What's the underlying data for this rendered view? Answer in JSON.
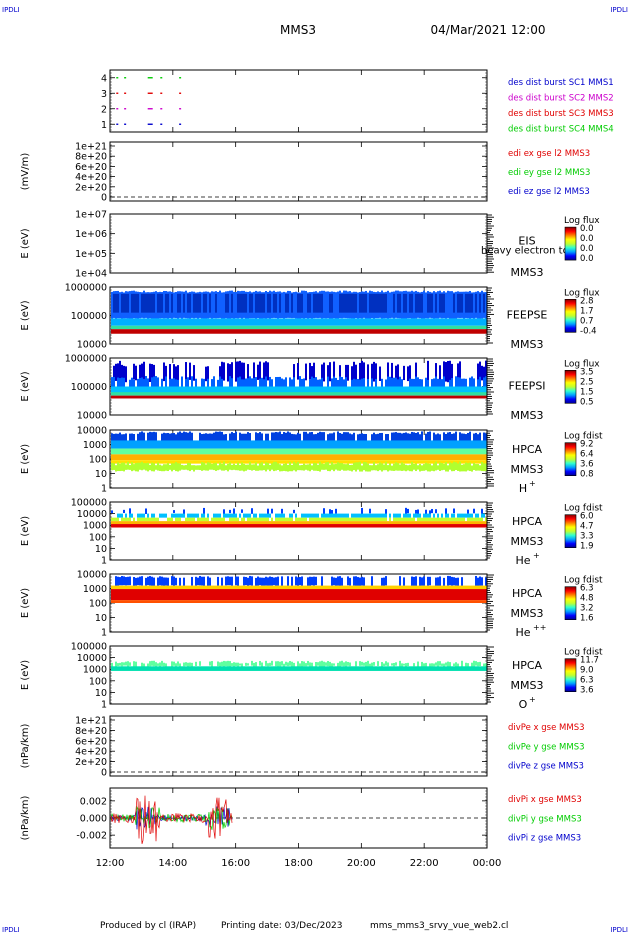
{
  "header": {
    "corner_label": "IPDLI",
    "mission": "MMS3",
    "datetime": "04/Mar/2021 12:00"
  },
  "footer": {
    "produced_by": "Produced by cl (IRAP)",
    "printing_date": "Printing date: 03/Dec/2023",
    "script": "mms_mms3_srvy_vue_web2.cl"
  },
  "x_axis": {
    "range": [
      "12:00",
      "00:00"
    ],
    "ticks": [
      "12:00",
      "14:00",
      "16:00",
      "18:00",
      "20:00",
      "22:00",
      "00:00"
    ]
  },
  "colors": {
    "red": "#e00000",
    "green": "#00cc00",
    "blue": "#0000cc",
    "magenta": "#cc00cc"
  },
  "chart_data": [
    {
      "type": "scatter",
      "name": "burst",
      "ylim": [
        0.5,
        4.5
      ],
      "yticks": [
        "4",
        "3",
        "2",
        "1"
      ],
      "legend": [
        {
          "label": "des dist burst SC1 MMS1",
          "color": "#0000cc"
        },
        {
          "label": "des dist burst SC2 MMS2",
          "color": "#cc00cc"
        },
        {
          "label": "des dist burst SC3 MMS3",
          "color": "#e00000"
        },
        {
          "label": "des dist burst SC4 MMS4",
          "color": "#00cc00"
        }
      ],
      "series": [
        {
          "y": 4,
          "color": "#00cc00",
          "x_hours": [
            0.2,
            0.45,
            1.2,
            1.6,
            2.2
          ]
        },
        {
          "y": 3,
          "color": "#e00000",
          "x_hours": [
            0.2,
            0.45,
            1.2,
            1.6,
            2.2
          ]
        },
        {
          "y": 2,
          "color": "#cc00cc",
          "x_hours": [
            0.2,
            0.45,
            1.2,
            1.6,
            2.2
          ]
        },
        {
          "y": 1,
          "color": "#0000cc",
          "x_hours": [
            0.2,
            0.45,
            1.2,
            1.6,
            2.2
          ]
        }
      ]
    },
    {
      "type": "line",
      "name": "edi",
      "ylabel": "(mV/m)",
      "yticks": [
        "1e+21",
        "8e+20",
        "6e+20",
        "4e+20",
        "2e+20",
        "0"
      ],
      "legend": [
        {
          "label": "edi ex gse l2 MMS3",
          "color": "#e00000"
        },
        {
          "label": "edi ey gse l2 MMS3",
          "color": "#00cc00"
        },
        {
          "label": "edi ez gse l2 MMS3",
          "color": "#0000cc"
        }
      ]
    },
    {
      "type": "heatmap",
      "name": "eis",
      "ylabel": "E (eV)",
      "yticks": [
        "1e+07",
        "1e+06",
        "1e+05",
        "1e+04"
      ],
      "instrument": "EIS",
      "overlay_text": "heavy electron to",
      "spacecraft": "MMS3",
      "cbar_title": "Log flux",
      "cbar_ticks": [
        "0.0",
        "0.0",
        "0.0",
        "0.0"
      ]
    },
    {
      "type": "heatmap",
      "name": "feepse",
      "ylabel": "E (eV)",
      "yticks": [
        "1000000",
        "100000",
        "10000"
      ],
      "instrument": "FEEPSE",
      "spacecraft": "MMS3",
      "cbar_title": "Log flux",
      "cbar_ticks": [
        "2.8",
        "1.7",
        "0.7",
        "-0.4"
      ]
    },
    {
      "type": "heatmap",
      "name": "feepsi",
      "ylabel": "E (eV)",
      "yticks": [
        "1000000",
        "100000",
        "10000"
      ],
      "instrument": "FEEPSI",
      "spacecraft": "MMS3",
      "cbar_title": "Log flux",
      "cbar_ticks": [
        "3.5",
        "2.5",
        "1.5",
        "0.5"
      ]
    },
    {
      "type": "heatmap",
      "name": "hpca-h",
      "ylabel": "E (eV)",
      "yticks": [
        "10000",
        "1000",
        "100",
        "10",
        "1"
      ],
      "instrument": "HPCA",
      "spacecraft": "MMS3",
      "species": "H",
      "charge": "+",
      "cbar_title": "Log fdist",
      "cbar_ticks": [
        "9.2",
        "6.4",
        "3.6",
        "0.8"
      ]
    },
    {
      "type": "heatmap",
      "name": "hpca-he1",
      "ylabel": "E (eV)",
      "yticks": [
        "100000",
        "10000",
        "1000",
        "100",
        "10",
        "1"
      ],
      "instrument": "HPCA",
      "spacecraft": "MMS3",
      "species": "He",
      "charge": "+",
      "cbar_title": "Log fdist",
      "cbar_ticks": [
        "6.0",
        "4.7",
        "3.3",
        "1.9"
      ]
    },
    {
      "type": "heatmap",
      "name": "hpca-he2",
      "ylabel": "E (eV)",
      "yticks": [
        "10000",
        "1000",
        "100",
        "10",
        "1"
      ],
      "instrument": "HPCA",
      "spacecraft": "MMS3",
      "species": "He",
      "charge": "++",
      "cbar_title": "Log fdist",
      "cbar_ticks": [
        "6.3",
        "4.8",
        "3.2",
        "1.6"
      ]
    },
    {
      "type": "heatmap",
      "name": "hpca-o",
      "ylabel": "E (eV)",
      "yticks": [
        "100000",
        "10000",
        "1000",
        "100",
        "10",
        "1"
      ],
      "instrument": "HPCA",
      "spacecraft": "MMS3",
      "species": "O",
      "charge": "+",
      "cbar_title": "Log fdist",
      "cbar_ticks": [
        "11.7",
        "9.0",
        "6.3",
        "3.6"
      ]
    },
    {
      "type": "line",
      "name": "divpe",
      "ylabel": "(nPa/km)",
      "yticks": [
        "1e+21",
        "8e+20",
        "6e+20",
        "4e+20",
        "2e+20",
        "0"
      ],
      "legend": [
        {
          "label": "divPe x gse MMS3",
          "color": "#e00000"
        },
        {
          "label": "divPe y gse MMS3",
          "color": "#00cc00"
        },
        {
          "label": "divPe z gse MMS3",
          "color": "#0000cc"
        }
      ]
    },
    {
      "type": "line",
      "name": "divpi",
      "ylabel": "(nPa/km)",
      "ylim": [
        -0.0035,
        0.0035
      ],
      "yticks": [
        "0.002",
        "0.000",
        "-0.002"
      ],
      "data_x_range_hours": [
        0,
        3.9
      ],
      "legend": [
        {
          "label": "divPi x gse MMS3",
          "color": "#e00000"
        },
        {
          "label": "divPi y gse MMS3",
          "color": "#00cc00"
        },
        {
          "label": "divPi z gse MMS3",
          "color": "#0000cc"
        }
      ]
    }
  ]
}
